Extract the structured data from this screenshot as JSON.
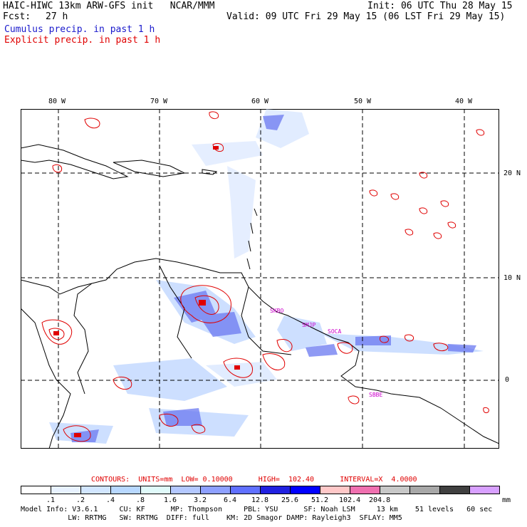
{
  "header": {
    "model": "HAIC-HIWC 13km ARW-GFS init   NCAR/MMM",
    "fcst_label": "Fcst:",
    "fcst_value": "27 h",
    "init": "Init: 06 UTC Thu 28 May 15",
    "valid": "Valid: 09 UTC Fri 29 May 15 (06 LST Fri 29 May 15)",
    "field1": "Cumulus precip. in past 1 h",
    "field2": "Explicit precip. in past 1 h"
  },
  "axes": {
    "lon_labels": [
      "80 W",
      "70 W",
      "60 W",
      "50 W",
      "40 W"
    ],
    "lat_labels": [
      "20 N",
      "10 N",
      "0"
    ]
  },
  "stations": [
    "SKBO",
    "SMJP",
    "SOCA",
    "SBBE"
  ],
  "contours_line": "CONTOURS:  UNITS=mm  LOW= 0.10000      HIGH=  102.40      INTERVAL=X  4.0000",
  "legend": {
    "colors": [
      "#ffffff",
      "#e8f2ff",
      "#d2e6ff",
      "#b8d8ff",
      "#e0fafa",
      "#b4c8ff",
      "#8ea0ff",
      "#6070ff",
      "#2020e0",
      "#0000ff",
      "#ffc8c8",
      "#f070b0",
      "#c8c8c8",
      "#a8a8a8",
      "#404040",
      "#d8a0ff"
    ],
    "labels": [
      ".1",
      ".2",
      ".4",
      ".8",
      "1.6",
      "3.2",
      "6.4",
      "12.8",
      "25.6",
      "51.2",
      "102.4",
      "204.8"
    ],
    "unit": "mm"
  },
  "footer": {
    "line1": "Model Info: V3.6.1     CU: KF      MP: Thompson     PBL: YSU      SF: Noah LSM     13 km    51 levels   60 sec",
    "line2": "           LW: RRTMG   SW: RRTMG  DIFF: full    KM: 2D Smagor DAMP: Rayleigh3  SFLAY: MM5"
  }
}
